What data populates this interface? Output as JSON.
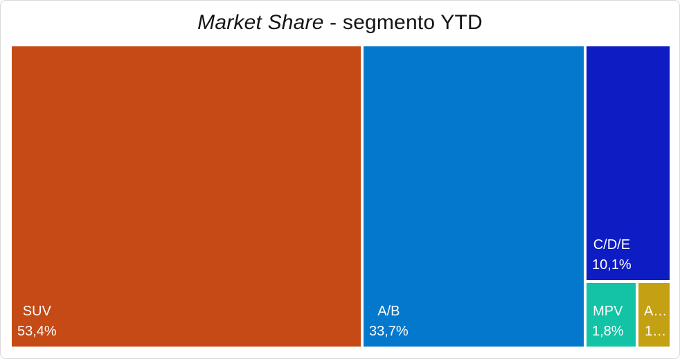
{
  "window": {
    "background": "#FFFFFF",
    "border_color": "#D9D9D9"
  },
  "title": {
    "text": "Market Share - segmento YTD",
    "italic_part": "Market Share",
    "regular_part": " - segmento YTD"
  },
  "chart_data": {
    "type": "treemap",
    "title": "Market Share - segmento YTD",
    "value_format": "percent with Italian decimal comma",
    "legend": "none",
    "label_position": "bottom-left of each tile, white text",
    "tiles": [
      {
        "label": "SUV",
        "value": 53.4,
        "value_label": "53,4%",
        "color": "#C54A15",
        "truncated": false
      },
      {
        "label": "A/B",
        "value": 33.7,
        "value_label": "33,7%",
        "color": "#0478CC",
        "truncated": false
      },
      {
        "label": "C/D/E",
        "value": 10.1,
        "value_label": "10,1%",
        "color": "#0E1CC4",
        "truncated": false
      },
      {
        "label": "MPV",
        "value": 1.8,
        "value_label": "1,8%",
        "color": "#12C3A6",
        "truncated": false
      },
      {
        "label": "A…",
        "value": null,
        "value_label": "1…",
        "color": "#C4A113",
        "truncated": true
      }
    ]
  }
}
